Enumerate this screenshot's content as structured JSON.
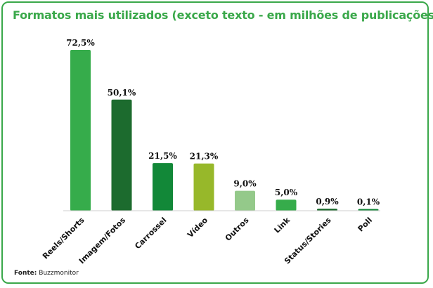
{
  "chart_data": {
    "type": "bar",
    "title": "Formatos mais utilizados (exceto texto - em milhões de publicações)",
    "categories": [
      "Reels/Shorts",
      "Imagem/Fotos",
      "Carrossel",
      "Vídeo",
      "Outros",
      "Link",
      "Status/Stories",
      "Poll"
    ],
    "values": [
      72.5,
      50.1,
      21.5,
      21.3,
      9.0,
      5.0,
      0.9,
      0.1
    ],
    "value_labels": [
      "72,5%",
      "50,1%",
      "21,5%",
      "21,3%",
      "9,0%",
      "5,0%",
      "0,9%",
      "0,1%"
    ],
    "colors": [
      "#36ac4b",
      "#1c6b2e",
      "#128838",
      "#97b82a",
      "#94c98a",
      "#36ac4b",
      "#1c6b2e",
      "#128838"
    ],
    "ylim": [
      0,
      72.5
    ],
    "grid": false,
    "legend": "none"
  },
  "source": {
    "label": "Fonte:",
    "text": "Buzzmonitor"
  }
}
